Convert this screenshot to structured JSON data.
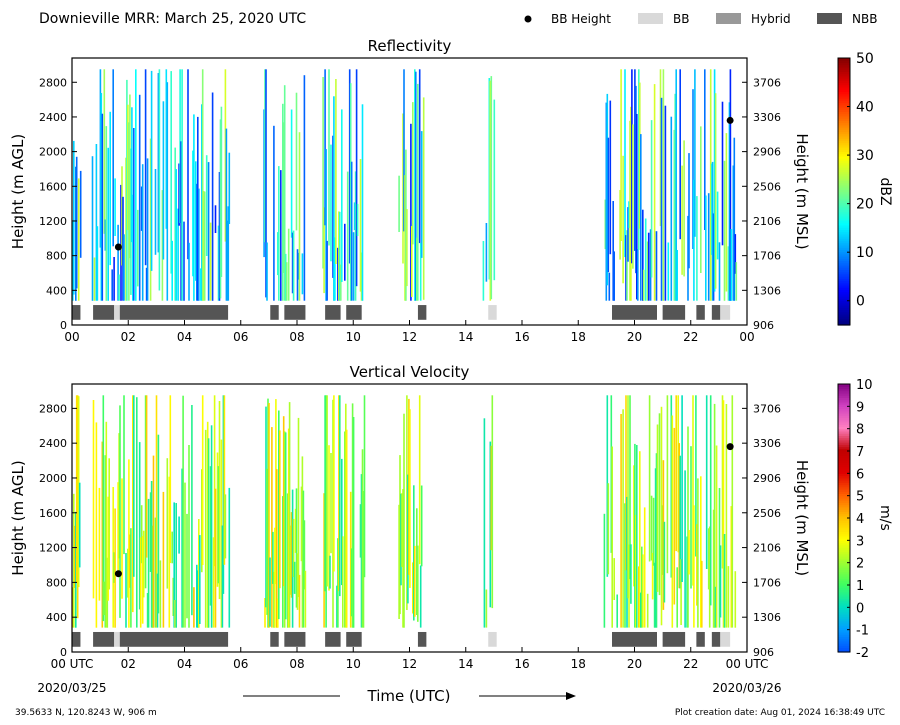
{
  "header": {
    "title": "Downieville MRR:  March 25, 2020 UTC",
    "legend": [
      {
        "label": "BB Height",
        "kind": "dot",
        "color": "#000000"
      },
      {
        "label": "BB",
        "kind": "patch",
        "color": "#d9d9d9"
      },
      {
        "label": "Hybrid",
        "kind": "patch",
        "color": "#999999"
      },
      {
        "label": "NBB",
        "kind": "patch",
        "color": "#555555"
      }
    ]
  },
  "footer": {
    "location": "39.5633 N, 120.8243 W, 906 m",
    "creation": "Plot creation date: Aug 01, 2024 16:38:49 UTC",
    "xlabel": "Time (UTC)",
    "start_date": "2020/03/25",
    "end_date": "2020/03/26"
  },
  "chart_data": [
    {
      "type": "heatmap",
      "title": "Reflectivity",
      "ylabel": "Height (m AGL)",
      "y2label": "Height (m MSL)",
      "ylim": [
        0,
        3080
      ],
      "y2_ticks": [
        "906",
        "1306",
        "1706",
        "2106",
        "2506",
        "2906",
        "3306",
        "3706"
      ],
      "y_ticks": [
        "0",
        "400",
        "800",
        "1200",
        "1600",
        "2000",
        "2400",
        "2800"
      ],
      "x_ticks": [
        "00",
        "02",
        "04",
        "06",
        "08",
        "10",
        "12",
        "14",
        "16",
        "18",
        "20",
        "22",
        "00"
      ],
      "xlim": [
        0,
        24
      ],
      "colorbar": {
        "label": "dBZ",
        "min": -5,
        "max": 50,
        "ticks": [
          "0",
          "10",
          "20",
          "30",
          "40",
          "50"
        ],
        "colors": [
          "#00007f",
          "#0000ff",
          "#007fff",
          "#00ffff",
          "#7fff7f",
          "#ffff00",
          "#ff7f00",
          "#ff0000",
          "#7f0000"
        ]
      },
      "precip_periods_hours": [
        [
          0,
          0.3
        ],
        [
          0.7,
          5.6
        ],
        [
          6.8,
          8.3
        ],
        [
          8.9,
          10.4
        ],
        [
          11.6,
          12.5
        ],
        [
          14.6,
          15.0
        ],
        [
          18.9,
          23.6
        ]
      ],
      "bb_height": [
        {
          "time": 1.65,
          "height": 900
        },
        {
          "time": 23.4,
          "height": 2360
        }
      ],
      "bb_type_bar": [
        {
          "start": 0.0,
          "end": 0.3,
          "type": "NBB"
        },
        {
          "start": 0.75,
          "end": 1.5,
          "type": "NBB"
        },
        {
          "start": 1.5,
          "end": 1.7,
          "type": "BB"
        },
        {
          "start": 1.7,
          "end": 5.55,
          "type": "NBB"
        },
        {
          "start": 7.05,
          "end": 7.35,
          "type": "NBB"
        },
        {
          "start": 7.55,
          "end": 8.3,
          "type": "NBB"
        },
        {
          "start": 9.0,
          "end": 9.55,
          "type": "NBB"
        },
        {
          "start": 9.75,
          "end": 10.3,
          "type": "NBB"
        },
        {
          "start": 12.3,
          "end": 12.6,
          "type": "NBB"
        },
        {
          "start": 14.8,
          "end": 15.1,
          "type": "BB"
        },
        {
          "start": 19.2,
          "end": 20.8,
          "type": "NBB"
        },
        {
          "start": 21.0,
          "end": 21.8,
          "type": "NBB"
        },
        {
          "start": 22.2,
          "end": 22.5,
          "type": "NBB"
        },
        {
          "start": 22.75,
          "end": 23.05,
          "type": "NBB"
        },
        {
          "start": 23.05,
          "end": 23.4,
          "type": "BB"
        }
      ]
    },
    {
      "type": "heatmap",
      "title": "Vertical Velocity",
      "ylabel": "Height (m AGL)",
      "y2label": "Height (m MSL)",
      "ylim": [
        0,
        3080
      ],
      "y2_ticks": [
        "906",
        "1306",
        "1706",
        "2106",
        "2506",
        "2906",
        "3306",
        "3706"
      ],
      "y_ticks": [
        "0",
        "400",
        "800",
        "1200",
        "1600",
        "2000",
        "2400",
        "2800"
      ],
      "x_ticks": [
        "00 UTC",
        "02",
        "04",
        "06",
        "08",
        "10",
        "12",
        "14",
        "16",
        "18",
        "20",
        "22",
        "00 UTC"
      ],
      "xlim": [
        0,
        24
      ],
      "colorbar": {
        "label": "m/s",
        "min": -2,
        "max": 10,
        "ticks": [
          "-2",
          "-1",
          "0",
          "1",
          "2",
          "3",
          "4",
          "5",
          "6",
          "7",
          "8",
          "9",
          "10"
        ],
        "colors": [
          "#0050ff",
          "#00a0ff",
          "#00e0c0",
          "#40ff60",
          "#a0ff30",
          "#ffff00",
          "#ffc000",
          "#ff6000",
          "#e00000",
          "#c00000",
          "#ff80c0",
          "#d040c0",
          "#800080"
        ]
      },
      "precip_periods_hours": [
        [
          0,
          0.3
        ],
        [
          0.7,
          5.6
        ],
        [
          6.8,
          8.3
        ],
        [
          8.9,
          10.4
        ],
        [
          11.6,
          12.5
        ],
        [
          14.6,
          15.0
        ],
        [
          18.9,
          23.6
        ]
      ],
      "bb_height": [
        {
          "time": 1.65,
          "height": 900
        },
        {
          "time": 23.4,
          "height": 2360
        }
      ],
      "bb_type_bar": [
        {
          "start": 0.0,
          "end": 0.3,
          "type": "NBB"
        },
        {
          "start": 0.75,
          "end": 1.5,
          "type": "NBB"
        },
        {
          "start": 1.5,
          "end": 1.7,
          "type": "BB"
        },
        {
          "start": 1.7,
          "end": 5.55,
          "type": "NBB"
        },
        {
          "start": 7.05,
          "end": 7.35,
          "type": "NBB"
        },
        {
          "start": 7.55,
          "end": 8.3,
          "type": "NBB"
        },
        {
          "start": 9.0,
          "end": 9.55,
          "type": "NBB"
        },
        {
          "start": 9.75,
          "end": 10.3,
          "type": "NBB"
        },
        {
          "start": 12.3,
          "end": 12.6,
          "type": "NBB"
        },
        {
          "start": 14.8,
          "end": 15.1,
          "type": "BB"
        },
        {
          "start": 19.2,
          "end": 20.8,
          "type": "NBB"
        },
        {
          "start": 21.0,
          "end": 21.8,
          "type": "NBB"
        },
        {
          "start": 22.2,
          "end": 22.5,
          "type": "NBB"
        },
        {
          "start": 22.75,
          "end": 23.05,
          "type": "NBB"
        },
        {
          "start": 23.05,
          "end": 23.4,
          "type": "BB"
        }
      ]
    }
  ]
}
